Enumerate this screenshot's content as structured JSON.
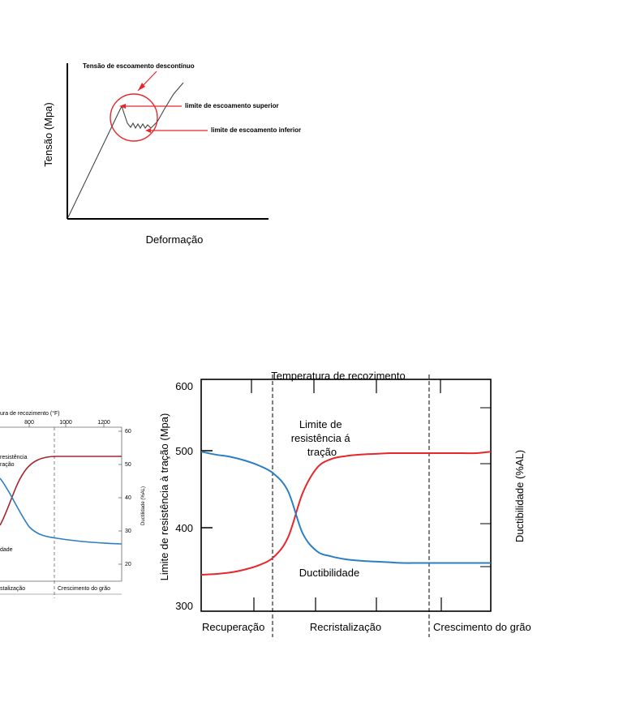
{
  "colors": {
    "red": "#e8262b",
    "blue": "#2a7fc4",
    "dark_red": "#a3282e",
    "axis": "#000000",
    "grey": "#666666"
  },
  "chart_data": [
    {
      "type": "line",
      "xlabel": "Deformação",
      "ylabel": "Tensão (Mpa)",
      "annotations": {
        "circle": "Tensão de escoamento descontínuo",
        "upper": "limite de escoamento superior",
        "lower": "limite de escoamento inferior"
      }
    },
    {
      "type": "line",
      "top_label": "ura de recozimento (°F)",
      "top_ticks": [
        "800",
        "1000",
        "1200"
      ],
      "right_ticks": [
        "60",
        "50",
        "40",
        "30",
        "20"
      ],
      "right_label": "Ductilidade (%AL)",
      "series_labels": [
        "resistência",
        "ração",
        "dade"
      ],
      "bottom_labels": [
        "stalização",
        "Crescimento do grão"
      ]
    },
    {
      "type": "line",
      "top_label": "Temperatura de recozimento",
      "ylabel": "Limite de resistência à tração (Mpa)",
      "y2label": "Ductibilidade  (%AL)",
      "yticks": [
        "600",
        "500",
        "400",
        "300"
      ],
      "ylim": [
        300,
        600
      ],
      "regions": [
        "Recuperação",
        "Recristalização",
        "Crescimento do grão"
      ],
      "series_labels": {
        "strength": "Limite de\nresistência á\ntração",
        "ductility": "Ductibilidade"
      },
      "x": [
        0,
        5,
        10,
        15,
        20,
        25,
        30,
        35,
        40,
        45,
        50,
        55,
        60,
        65,
        70,
        75,
        80,
        85,
        90,
        95,
        100
      ],
      "series": [
        {
          "name": "Limite de resistência á tração",
          "color": "#e8262b",
          "values": [
            341,
            342,
            344,
            348,
            354,
            365,
            392,
            452,
            487,
            499,
            503,
            505,
            506,
            507,
            507,
            507,
            507,
            507,
            507,
            507,
            509
          ]
        },
        {
          "name": "Ductibilidade",
          "color": "#2a7fc4",
          "values": [
            509,
            505,
            502,
            497,
            490,
            479,
            455,
            398,
            373,
            366,
            362,
            360,
            359,
            358,
            357,
            357,
            357,
            357,
            357,
            357,
            357
          ]
        }
      ]
    }
  ]
}
